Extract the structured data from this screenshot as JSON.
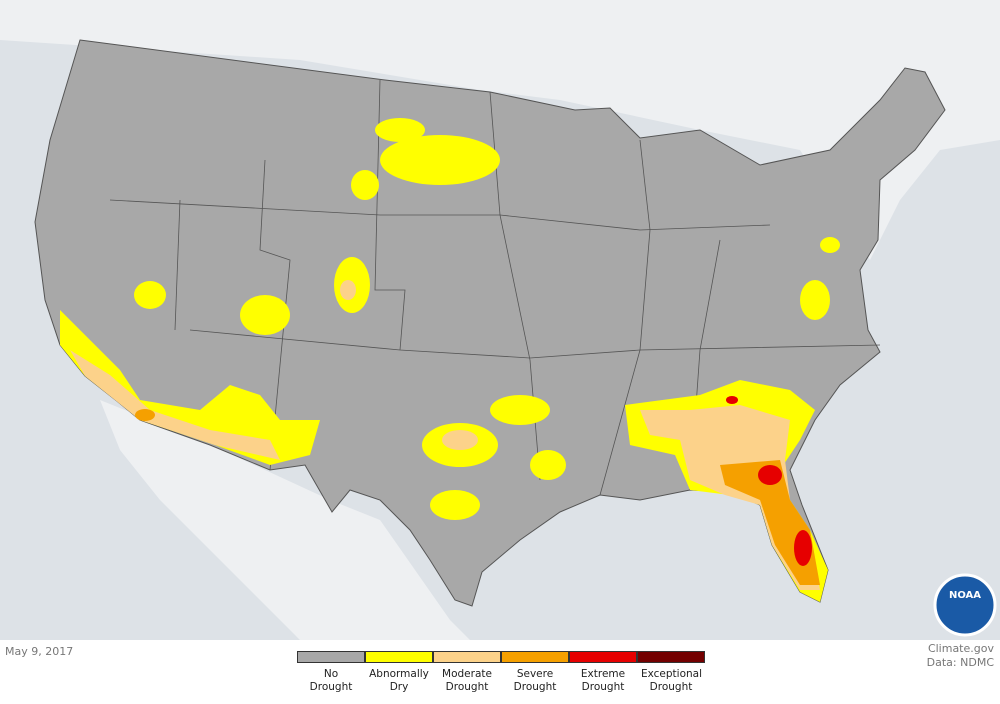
{
  "date": "May 9, 2017",
  "source": "Climate.gov",
  "credit": "Data: NDMC",
  "logo": "NOAA",
  "legend": [
    {
      "label": "No Drought",
      "color": "#a8a8a8"
    },
    {
      "label": "Abnormally Dry",
      "color": "#ffff00"
    },
    {
      "label": "Moderate Drought",
      "color": "#fcd28a"
    },
    {
      "label": "Severe Drought",
      "color": "#f5a000"
    },
    {
      "label": "Extreme Drought",
      "color": "#e60000"
    },
    {
      "label": "Exceptional Drought",
      "color": "#730000"
    }
  ]
}
